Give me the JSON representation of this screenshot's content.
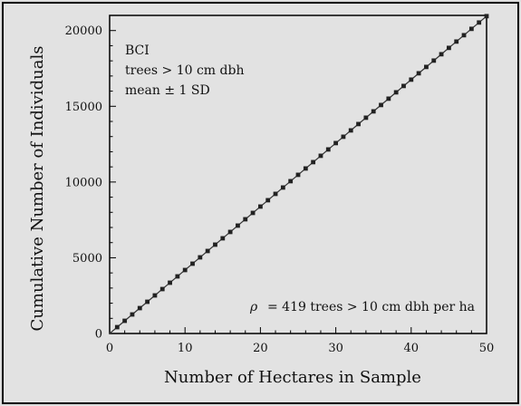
{
  "chart_data": {
    "type": "scatter",
    "title": "",
    "xlabel": "Number of Hectares in Sample",
    "ylabel": "Cumulative Number of Individuals",
    "xlim": [
      0,
      50
    ],
    "ylim": [
      0,
      21000
    ],
    "xticks": [
      0,
      10,
      20,
      30,
      40,
      50
    ],
    "yticks": [
      0,
      5000,
      10000,
      15000,
      20000
    ],
    "xtick_labels": [
      "0",
      "10",
      "20",
      "30",
      "40",
      "50"
    ],
    "ytick_labels": [
      "0",
      "5000",
      "10000",
      "15000",
      "20000"
    ],
    "grid": false,
    "annotations": {
      "site": "BCI",
      "criterion": "trees > 10 cm dbh",
      "statistic": "mean ± 1 SD",
      "rho_symbol": "ρ",
      "rho_text": "= 419 trees > 10 cm dbh per ha"
    },
    "series": [
      {
        "x": [
          1,
          2,
          3,
          4,
          5,
          6,
          7,
          8,
          9,
          10,
          11,
          12,
          13,
          14,
          15,
          16,
          17,
          18,
          19,
          20,
          21,
          22,
          23,
          24,
          25,
          26,
          27,
          28,
          29,
          30,
          31,
          32,
          33,
          34,
          35,
          36,
          37,
          38,
          39,
          40,
          41,
          42,
          43,
          44,
          45,
          46,
          47,
          48,
          49,
          50
        ],
        "values": [
          419,
          838,
          1257,
          1676,
          2095,
          2514,
          2933,
          3352,
          3771,
          4190,
          4609,
          5028,
          5447,
          5866,
          6285,
          6704,
          7123,
          7542,
          7961,
          8380,
          8799,
          9218,
          9637,
          10056,
          10475,
          10894,
          11313,
          11732,
          12151,
          12570,
          12989,
          13408,
          13827,
          14246,
          14665,
          15084,
          15503,
          15922,
          16341,
          16760,
          17179,
          17598,
          18017,
          18436,
          18855,
          19274,
          19693,
          20112,
          20531,
          20950
        ]
      }
    ]
  }
}
